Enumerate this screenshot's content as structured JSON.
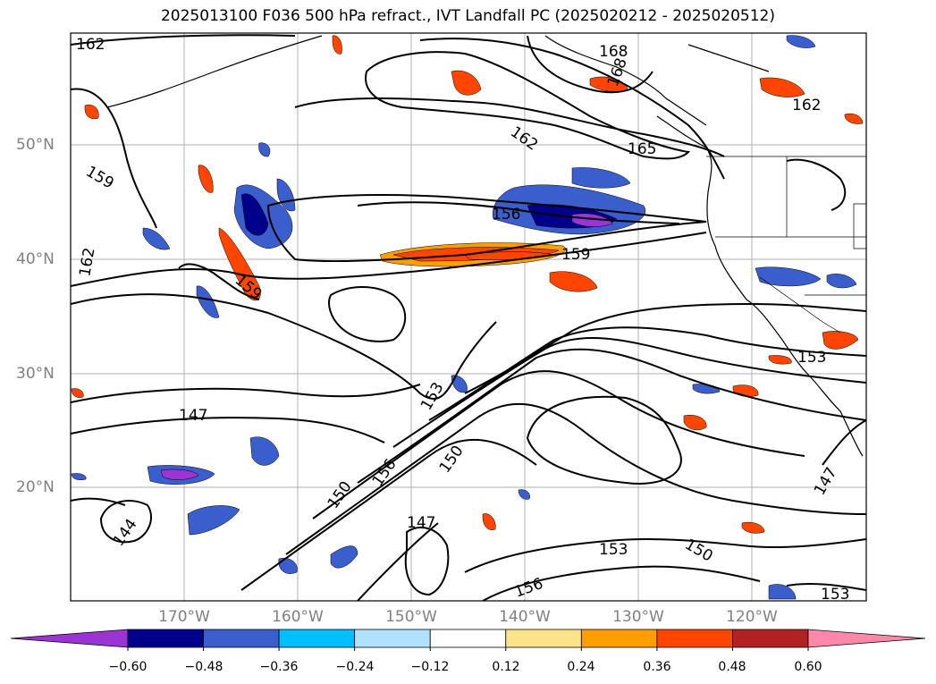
{
  "title": "2025013100 F036 500 hPa refract., IVT Landfall PC (2025020212 - 2025020512)",
  "lat_labels": [
    "50°N",
    "40°N",
    "30°N",
    "20°N"
  ],
  "lon_labels": [
    "170°W",
    "160°W",
    "150°W",
    "140°W",
    "130°W",
    "120°W"
  ],
  "contour_labels": [
    "162",
    "168",
    "162",
    "165",
    "159",
    "156",
    "159",
    "162",
    "159",
    "162",
    "153",
    "153",
    "147",
    "150",
    "150",
    "156",
    "147",
    "144",
    "153",
    "150",
    "156",
    "153",
    "147",
    "168"
  ],
  "colorbar": {
    "ticks": [
      "−0.60",
      "−0.48",
      "−0.36",
      "−0.24",
      "−0.12",
      "0.12",
      "0.24",
      "0.36",
      "0.48",
      "0.60"
    ],
    "colors": [
      "#9a35d4",
      "#00008b",
      "#3a5fcd",
      "#00bfff",
      "#b0e2ff",
      "#ffffff",
      "#fce38a",
      "#ff9e00",
      "#ff4500",
      "#b22222",
      "#ff88aa"
    ]
  }
}
